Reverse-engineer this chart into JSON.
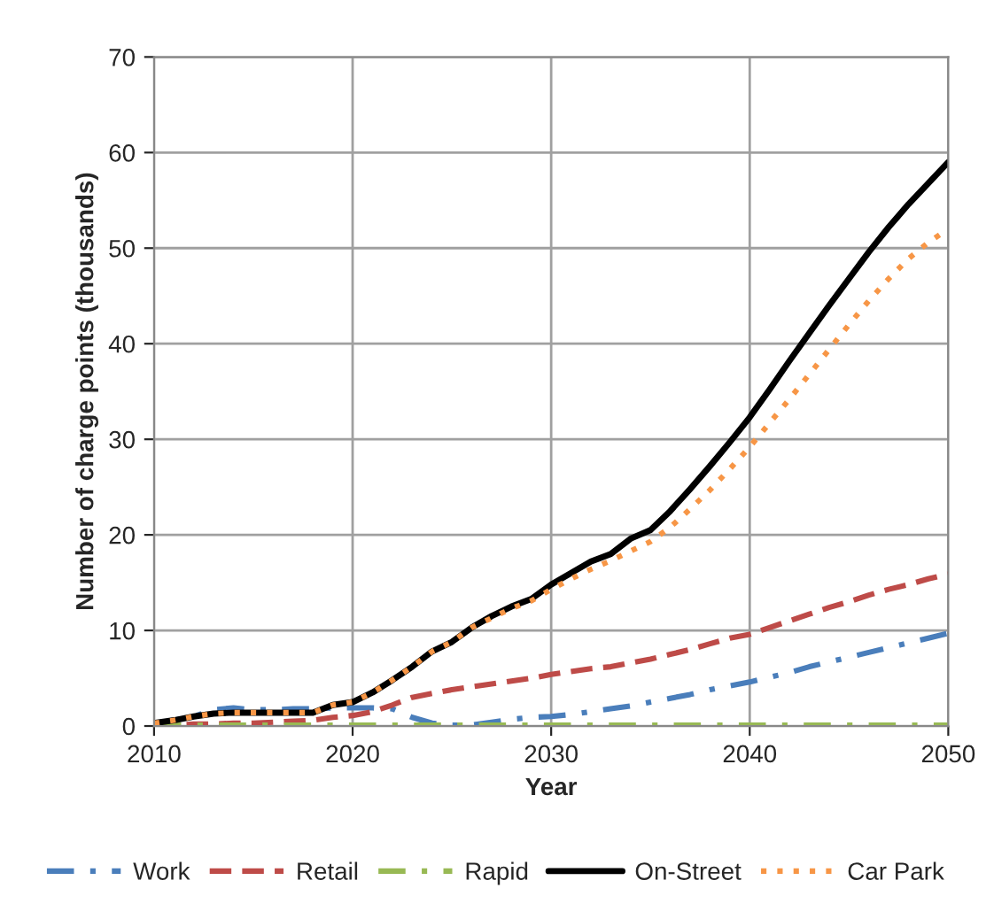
{
  "chart_data": {
    "type": "line",
    "xlabel": "Year",
    "ylabel": "Number of charge points (thousands)",
    "x": [
      2010,
      2011,
      2012,
      2013,
      2014,
      2015,
      2016,
      2017,
      2018,
      2019,
      2020,
      2021,
      2022,
      2023,
      2024,
      2025,
      2026,
      2027,
      2028,
      2029,
      2030,
      2031,
      2032,
      2033,
      2034,
      2035,
      2036,
      2037,
      2038,
      2039,
      2040,
      2041,
      2042,
      2043,
      2044,
      2045,
      2046,
      2047,
      2048,
      2049,
      2050
    ],
    "xlim": [
      2010,
      2050
    ],
    "xticks": [
      2010,
      2020,
      2030,
      2040,
      2050
    ],
    "ylim": [
      0,
      70
    ],
    "yticks": [
      0,
      10,
      20,
      30,
      40,
      50,
      60,
      70
    ],
    "grid": true,
    "legend": "bottom",
    "marker": "none",
    "series": [
      {
        "name": "Work",
        "color": "#4a7ebb",
        "line_style": "dashdot",
        "values": [
          0.2,
          0.6,
          1.0,
          1.7,
          1.9,
          1.7,
          1.7,
          1.8,
          1.8,
          1.9,
          1.9,
          1.9,
          1.8,
          0.9,
          0.3,
          0.1,
          0.1,
          0.4,
          0.7,
          0.9,
          1.0,
          1.2,
          1.5,
          1.8,
          2.1,
          2.5,
          2.9,
          3.3,
          3.8,
          4.2,
          4.6,
          5.1,
          5.6,
          6.2,
          6.7,
          7.2,
          7.7,
          8.2,
          8.7,
          9.2,
          9.7
        ]
      },
      {
        "name": "Retail",
        "color": "#be4b48",
        "line_style": "dashed",
        "values": [
          0.1,
          0.1,
          0.2,
          0.2,
          0.3,
          0.3,
          0.4,
          0.5,
          0.6,
          0.9,
          1.1,
          1.5,
          2.2,
          3.0,
          3.4,
          3.8,
          4.1,
          4.4,
          4.7,
          5.0,
          5.4,
          5.7,
          6.0,
          6.2,
          6.6,
          7.0,
          7.5,
          8.0,
          8.6,
          9.2,
          9.6,
          10.3,
          11.0,
          11.7,
          12.4,
          13.0,
          13.7,
          14.3,
          14.8,
          15.4,
          15.9
        ]
      },
      {
        "name": "Rapid",
        "color": "#98b954",
        "line_style": "dashdot",
        "values": [
          0.1,
          0.1,
          0.1,
          0.1,
          0.1,
          0.1,
          0.1,
          0.1,
          0.1,
          0.1,
          0.1,
          0.1,
          0.1,
          0.1,
          0.1,
          0.1,
          0.1,
          0.1,
          0.1,
          0.1,
          0.1,
          0.1,
          0.1,
          0.1,
          0.1,
          0.1,
          0.1,
          0.1,
          0.1,
          0.1,
          0.1,
          0.1,
          0.1,
          0.1,
          0.1,
          0.1,
          0.1,
          0.1,
          0.1,
          0.1,
          0.1
        ]
      },
      {
        "name": "On-Street",
        "color": "#000000",
        "line_style": "solid",
        "values": [
          0.3,
          0.6,
          1.0,
          1.3,
          1.4,
          1.4,
          1.4,
          1.4,
          1.4,
          2.2,
          2.5,
          3.5,
          4.8,
          6.2,
          7.8,
          8.8,
          10.3,
          11.5,
          12.5,
          13.3,
          14.8,
          16.0,
          17.2,
          18.0,
          19.6,
          20.5,
          22.5,
          24.8,
          27.2,
          29.7,
          32.3,
          35.2,
          38.2,
          41.1,
          44.0,
          46.8,
          49.6,
          52.2,
          54.6,
          56.8,
          59.0
        ]
      },
      {
        "name": "Car Park",
        "color": "#f79646",
        "line_style": "dotted",
        "values": [
          0.3,
          0.6,
          1.0,
          1.3,
          1.4,
          1.4,
          1.4,
          1.4,
          1.4,
          2.2,
          2.5,
          3.5,
          4.8,
          6.2,
          7.8,
          8.8,
          10.3,
          11.3,
          12.3,
          13.1,
          14.3,
          15.4,
          16.4,
          17.3,
          18.3,
          19.3,
          20.8,
          22.7,
          24.7,
          26.9,
          29.2,
          31.7,
          34.2,
          36.8,
          39.4,
          42.0,
          44.5,
          46.8,
          48.9,
          50.6,
          52.0
        ]
      }
    ]
  }
}
